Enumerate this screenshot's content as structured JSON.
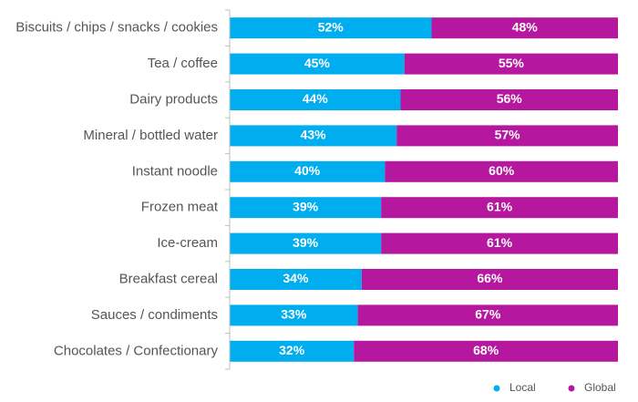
{
  "chart_data": {
    "type": "bar",
    "orientation": "horizontal",
    "stacked": true,
    "percent_stacked": true,
    "categories": [
      "Biscuits / chips / snacks / cookies",
      "Tea / coffee",
      "Dairy products",
      "Mineral / bottled water",
      "Instant noodle",
      "Frozen meat",
      "Ice-cream",
      "Breakfast cereal",
      "Sauces / condiments",
      "Chocolates / Confectionary"
    ],
    "series": [
      {
        "name": "Local",
        "color": "#00AEEF",
        "values": [
          52,
          45,
          44,
          43,
          40,
          39,
          39,
          34,
          33,
          32
        ]
      },
      {
        "name": "Global",
        "color": "#B5179E",
        "values": [
          48,
          55,
          56,
          57,
          60,
          61,
          61,
          66,
          67,
          68
        ]
      }
    ],
    "value_format": "{v}%",
    "xlim": [
      0,
      100
    ],
    "grid": false,
    "legend_position": "bottom-right"
  }
}
